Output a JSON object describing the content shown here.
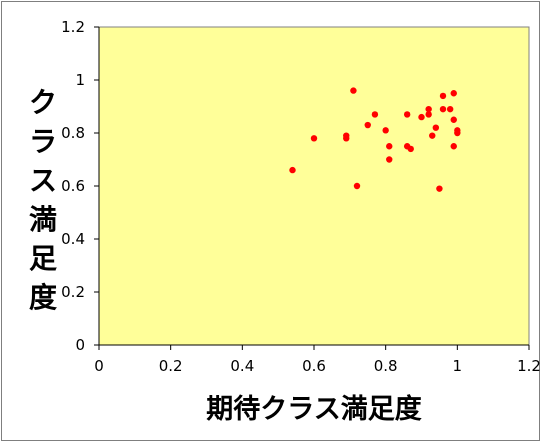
{
  "chart_data": {
    "type": "scatter",
    "title": "",
    "xlabel": "期待クラス満足度",
    "ylabel": "クラス満足度",
    "xlim": [
      0,
      1.2
    ],
    "ylim": [
      0,
      1.2
    ],
    "x_ticks": [
      "0",
      "0.2",
      "0.4",
      "0.6",
      "0.8",
      "1",
      "1.2"
    ],
    "y_ticks": [
      "0",
      "0.2",
      "0.4",
      "0.6",
      "0.8",
      "1",
      "1.2"
    ],
    "grid": false,
    "legend": "none",
    "plot_background": "#ffff99",
    "marker_color": "#ff0000",
    "points": [
      {
        "x": 0.54,
        "y": 0.66
      },
      {
        "x": 0.6,
        "y": 0.78
      },
      {
        "x": 0.69,
        "y": 0.79
      },
      {
        "x": 0.69,
        "y": 0.78
      },
      {
        "x": 0.71,
        "y": 0.96
      },
      {
        "x": 0.72,
        "y": 0.6
      },
      {
        "x": 0.75,
        "y": 0.83
      },
      {
        "x": 0.77,
        "y": 0.87
      },
      {
        "x": 0.8,
        "y": 0.81
      },
      {
        "x": 0.81,
        "y": 0.75
      },
      {
        "x": 0.81,
        "y": 0.7
      },
      {
        "x": 0.86,
        "y": 0.87
      },
      {
        "x": 0.86,
        "y": 0.75
      },
      {
        "x": 0.87,
        "y": 0.74
      },
      {
        "x": 0.9,
        "y": 0.86
      },
      {
        "x": 0.92,
        "y": 0.89
      },
      {
        "x": 0.92,
        "y": 0.87
      },
      {
        "x": 0.93,
        "y": 0.79
      },
      {
        "x": 0.94,
        "y": 0.82
      },
      {
        "x": 0.95,
        "y": 0.59
      },
      {
        "x": 0.96,
        "y": 0.94
      },
      {
        "x": 0.96,
        "y": 0.89
      },
      {
        "x": 0.98,
        "y": 0.89
      },
      {
        "x": 0.99,
        "y": 0.95
      },
      {
        "x": 0.99,
        "y": 0.75
      },
      {
        "x": 0.99,
        "y": 0.85
      },
      {
        "x": 1.0,
        "y": 0.81
      },
      {
        "x": 1.0,
        "y": 0.8
      }
    ]
  }
}
